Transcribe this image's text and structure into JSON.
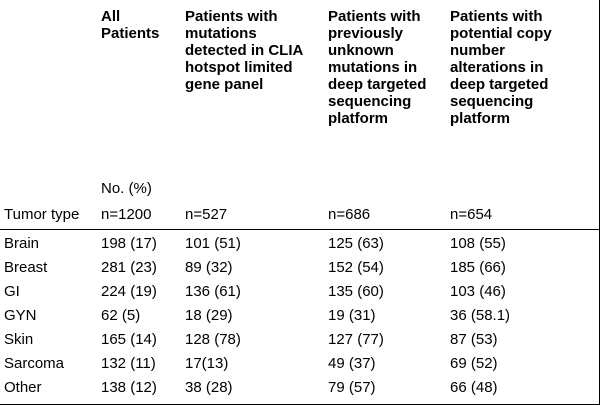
{
  "table": {
    "headers": [
      {
        "lines": [
          "All",
          "Patients"
        ]
      },
      {
        "lines": [
          "Patients with",
          "mutations",
          "detected in CLIA",
          "hotspot limited",
          "gene panel"
        ]
      },
      {
        "lines": [
          "Patients with",
          "previously",
          "unknown",
          "mutations in",
          "deep targeted",
          "sequencing",
          "platform"
        ]
      },
      {
        "lines": [
          "Patients with",
          "potential copy",
          "number",
          "alterations in",
          "deep targeted",
          "sequencing",
          "platform"
        ]
      }
    ],
    "no_pct_label": "No. (%)",
    "tumor_type_label": "Tumor type",
    "counts": [
      "n=1200",
      "n=527",
      "n=686",
      "n=654"
    ],
    "rows": [
      [
        "Brain",
        "198 (17)",
        "101 (51)",
        "125 (63)",
        "108 (55)"
      ],
      [
        "Breast",
        "281 (23)",
        "89 (32)",
        "152 (54)",
        "185 (66)"
      ],
      [
        "GI",
        "224 (19)",
        "136 (61)",
        "135 (60)",
        "103 (46)"
      ],
      [
        "GYN",
        "62 (5)",
        "18 (29)",
        "19 (31)",
        "36 (58.1)"
      ],
      [
        "Skin",
        "165 (14)",
        "128 (78)",
        "127 (77)",
        "87 (53)"
      ],
      [
        "Sarcoma",
        "132 (11)",
        "17(13)",
        "49 (37)",
        "69 (52)"
      ],
      [
        "Other",
        "138 (12)",
        "38 (28)",
        "79 (57)",
        "66 (48)"
      ]
    ]
  }
}
